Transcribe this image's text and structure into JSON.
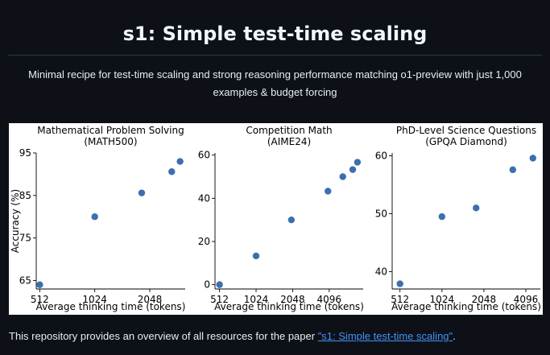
{
  "header": {
    "title": "s1: Simple test-time scaling",
    "subtitle": "Minimal recipe for test-time scaling and strong reasoning performance matching o1-preview with just 1,000 examples & budget forcing"
  },
  "chart_data": [
    {
      "type": "scatter",
      "title": "Mathematical Problem Solving",
      "subtitle": "(MATH500)",
      "xlabel": "Average thinking time (tokens)",
      "ylabel": "Accuracy (%)",
      "xscale": "log2",
      "xticks": [
        "512",
        "1024",
        "2048"
      ],
      "yticks": [
        65,
        75,
        85,
        95
      ],
      "ylim": [
        63,
        95
      ],
      "grid": false,
      "color": "#3a6fb0",
      "points": [
        {
          "x": 512,
          "y": 64.0
        },
        {
          "x": 1024,
          "y": 80.0
        },
        {
          "x": 1850,
          "y": 85.6
        },
        {
          "x": 2700,
          "y": 90.6
        },
        {
          "x": 3000,
          "y": 93.0
        }
      ]
    },
    {
      "type": "scatter",
      "title": "Competition Math",
      "subtitle": "(AIME24)",
      "xlabel": "Average thinking time (tokens)",
      "ylabel": "",
      "xscale": "log2",
      "xticks": [
        "512",
        "1024",
        "2048",
        "4096"
      ],
      "yticks": [
        0,
        20,
        40,
        60
      ],
      "ylim": [
        -2,
        61
      ],
      "grid": false,
      "color": "#3a6fb0",
      "points": [
        {
          "x": 512,
          "y": 0.0
        },
        {
          "x": 1024,
          "y": 13.3
        },
        {
          "x": 2000,
          "y": 30.0
        },
        {
          "x": 4000,
          "y": 43.3
        },
        {
          "x": 5300,
          "y": 50.0
        },
        {
          "x": 6400,
          "y": 53.3
        },
        {
          "x": 7000,
          "y": 56.7
        }
      ]
    },
    {
      "type": "scatter",
      "title": "PhD-Level Science Questions",
      "subtitle": "(GPQA Diamond)",
      "xlabel": "Average thinking time (tokens)",
      "ylabel": "",
      "xscale": "log2",
      "xticks": [
        "512",
        "1024",
        "2048",
        "4096"
      ],
      "yticks": [
        40,
        50,
        60
      ],
      "ylim": [
        37,
        60.5
      ],
      "grid": false,
      "color": "#3a6fb0",
      "points": [
        {
          "x": 512,
          "y": 37.9
        },
        {
          "x": 1024,
          "y": 49.5
        },
        {
          "x": 1800,
          "y": 51.0
        },
        {
          "x": 3300,
          "y": 57.6
        },
        {
          "x": 4600,
          "y": 59.6
        }
      ]
    }
  ],
  "footer": {
    "text": "This repository provides an overview of all resources for the paper ",
    "link_text": "\"s1: Simple test-time scaling\"",
    "suffix": "."
  }
}
